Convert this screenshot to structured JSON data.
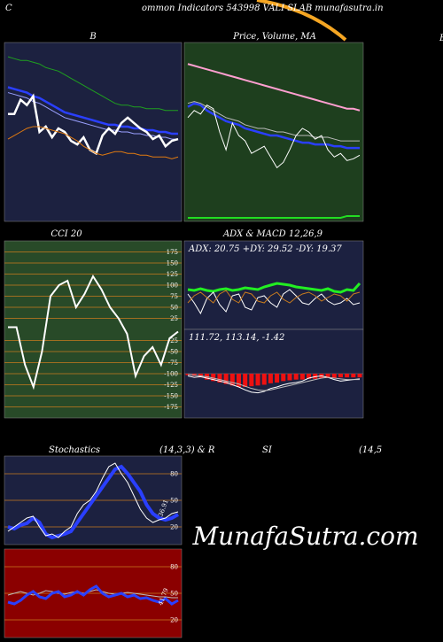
{
  "page": {
    "corner": "C",
    "title": "ommon  Indicators 543998 VALI     SLAB munafasutra.in",
    "right_label": "B",
    "watermark": "MunafaSutra.com",
    "stoch_header": [
      "Stochastics",
      "(14,3,3) & R",
      "SI",
      "(14,5"
    ]
  },
  "chart_data": [
    {
      "type": "line",
      "title": "B",
      "background": "#1c2140",
      "ylim": [
        0,
        100
      ],
      "series": [
        {
          "name": "upper",
          "color": "#1fa01f",
          "width": 1,
          "values": [
            92,
            91,
            90,
            90,
            89,
            88,
            86,
            85,
            84,
            82,
            80,
            78,
            76,
            74,
            72,
            70,
            68,
            66,
            65,
            65,
            64,
            64,
            63,
            63,
            63,
            62,
            62,
            62
          ]
        },
        {
          "name": "mid",
          "color": "#2a3fff",
          "width": 2.5,
          "values": [
            75,
            74,
            73,
            72,
            70,
            69,
            67,
            65,
            63,
            61,
            60,
            59,
            58,
            57,
            56,
            55,
            54,
            54,
            53,
            53,
            52,
            52,
            51,
            51,
            50,
            50,
            49,
            49
          ]
        },
        {
          "name": "mid2",
          "color": "#9aa0ff",
          "width": 1,
          "values": [
            72,
            71,
            70,
            69,
            67,
            66,
            64,
            62,
            60,
            58,
            57,
            56,
            55,
            54,
            53,
            52,
            51,
            51,
            50,
            50,
            49,
            49,
            48,
            48,
            47,
            47,
            46,
            46
          ]
        },
        {
          "name": "price",
          "color": "#ffffff",
          "width": 2.5,
          "values": [
            60,
            60,
            68,
            65,
            70,
            50,
            53,
            47,
            52,
            50,
            45,
            43,
            47,
            40,
            38,
            48,
            52,
            49,
            55,
            58,
            55,
            52,
            50,
            46,
            48,
            42,
            45,
            46
          ]
        },
        {
          "name": "lower",
          "color": "#e07a10",
          "width": 1,
          "values": [
            46,
            48,
            50,
            52,
            53,
            53,
            52,
            51,
            50,
            49,
            47,
            45,
            42,
            40,
            38,
            37,
            38,
            39,
            39,
            38,
            38,
            37,
            37,
            36,
            36,
            36,
            35,
            36
          ]
        }
      ]
    },
    {
      "type": "line",
      "title": "Price, Volume, MA",
      "background": "#1e3f1e",
      "ylim": [
        0,
        100
      ],
      "series": [
        {
          "name": "ma-long",
          "color": "#ff9fd0",
          "width": 2,
          "values": [
            88,
            87,
            86,
            85,
            84,
            83,
            82,
            81,
            80,
            79,
            78,
            77,
            76,
            75,
            74,
            73,
            72,
            71,
            70,
            69,
            68,
            67,
            66,
            65,
            64,
            63,
            63,
            62
          ]
        },
        {
          "name": "ma-gray",
          "color": "#bbbbbb",
          "width": 1,
          "values": [
            66,
            67,
            66,
            64,
            62,
            60,
            58,
            57,
            56,
            54,
            53,
            52,
            52,
            51,
            50,
            50,
            49,
            48,
            48,
            48,
            47,
            47,
            47,
            46,
            45,
            45,
            45,
            45
          ]
        },
        {
          "name": "ma-blue",
          "color": "#2a3fff",
          "width": 2.5,
          "values": [
            64,
            66,
            65,
            62,
            60,
            58,
            56,
            55,
            54,
            52,
            51,
            50,
            49,
            48,
            48,
            47,
            46,
            45,
            44,
            44,
            43,
            43,
            43,
            42,
            42,
            41,
            41,
            41
          ]
        },
        {
          "name": "price",
          "color": "#ffffff",
          "width": 1,
          "values": [
            58,
            62,
            60,
            65,
            63,
            50,
            40,
            55,
            48,
            45,
            38,
            40,
            42,
            36,
            30,
            33,
            40,
            48,
            52,
            50,
            46,
            48,
            40,
            36,
            38,
            34,
            35,
            37
          ]
        },
        {
          "name": "volume",
          "color": "#22dd22",
          "width": 2,
          "values": [
            2,
            2,
            2,
            2,
            2,
            2,
            2,
            2,
            2,
            2,
            2,
            2,
            2,
            2,
            2,
            2,
            2,
            2,
            2,
            2,
            2,
            2,
            2,
            2,
            2,
            3,
            3,
            3
          ]
        }
      ]
    },
    {
      "type": "line",
      "title": "CCI 20",
      "background": "#284a28",
      "grid": true,
      "gridcolor": "#c87b1e",
      "ylim": [
        -200,
        200
      ],
      "yticks": [
        175,
        150,
        125,
        100,
        75,
        50,
        25,
        -25,
        -50,
        -75,
        -100,
        -125,
        -150,
        -175
      ],
      "current": -5,
      "series": [
        {
          "name": "cci",
          "color": "#ffffff",
          "width": 2,
          "values": [
            5,
            5,
            -80,
            -130,
            -50,
            75,
            100,
            110,
            50,
            80,
            120,
            90,
            50,
            25,
            -10,
            -105,
            -60,
            -40,
            -80,
            -20,
            -5
          ]
        }
      ]
    },
    {
      "type": "line",
      "label": "ADX: 20.75  +DY: 29.52  -DY: 19.37",
      "title": "ADX  & MACD 12,26,9",
      "background": "#1c2140",
      "ylim": [
        0,
        100
      ],
      "series": [
        {
          "name": "adx",
          "color": "#22ee22",
          "width": 3,
          "values": [
            45,
            44,
            46,
            44,
            43,
            45,
            46,
            44,
            45,
            47,
            46,
            45,
            48,
            50,
            52,
            51,
            50,
            48,
            47,
            46,
            45,
            44,
            46,
            43,
            42,
            45,
            44,
            52
          ]
        },
        {
          "name": "plus-di",
          "color": "#ffffff",
          "width": 1,
          "values": [
            40,
            30,
            18,
            35,
            42,
            28,
            20,
            38,
            40,
            25,
            22,
            36,
            38,
            30,
            25,
            40,
            45,
            38,
            30,
            28,
            35,
            40,
            32,
            28,
            30,
            35,
            28,
            30
          ]
        },
        {
          "name": "minus-di",
          "color": "#c87b1e",
          "width": 1,
          "values": [
            30,
            38,
            42,
            36,
            30,
            40,
            44,
            34,
            30,
            42,
            40,
            32,
            30,
            38,
            42,
            34,
            30,
            36,
            40,
            42,
            38,
            32,
            36,
            40,
            38,
            32,
            40,
            42
          ]
        }
      ]
    },
    {
      "type": "line",
      "label": "111.72, 113.14, -1.42",
      "background": "#1c2140",
      "ylim": [
        -60,
        60
      ],
      "zero": true,
      "series": [
        {
          "name": "hist",
          "color": "#ee1111",
          "bars": true,
          "values": [
            -2,
            -3,
            -5,
            -8,
            -10,
            -12,
            -14,
            -16,
            -18,
            -18,
            -17,
            -16,
            -15,
            -13,
            -12,
            -10,
            -9,
            -8,
            -8,
            -7,
            -7,
            -6,
            -6,
            -6,
            -5,
            -5,
            -5,
            -5
          ]
        },
        {
          "name": "macd",
          "color": "#ffffff",
          "width": 1,
          "values": [
            -3,
            -5,
            -4,
            -6,
            -8,
            -10,
            -12,
            -15,
            -18,
            -22,
            -25,
            -26,
            -24,
            -20,
            -18,
            -15,
            -13,
            -12,
            -10,
            -6,
            -4,
            -3,
            -5,
            -8,
            -10,
            -9,
            -8,
            -7
          ]
        },
        {
          "name": "signal",
          "color": "#bbbbbb",
          "width": 1,
          "values": [
            -1,
            -2,
            -3,
            -4,
            -6,
            -8,
            -10,
            -12,
            -14,
            -17,
            -20,
            -22,
            -23,
            -22,
            -20,
            -18,
            -16,
            -14,
            -12,
            -10,
            -8,
            -6,
            -5,
            -6,
            -7,
            -8,
            -8,
            -8
          ]
        }
      ]
    },
    {
      "type": "line",
      "background": "#1c2140",
      "grid": true,
      "gridcolor": "#c87b1e",
      "ylim": [
        0,
        100
      ],
      "yticks": [
        80,
        50,
        20
      ],
      "current_label": "36.91",
      "series": [
        {
          "name": "stoch-d",
          "color": "#2a3fff",
          "width": 4,
          "values": [
            20,
            18,
            22,
            24,
            30,
            25,
            12,
            8,
            10,
            12,
            15,
            25,
            35,
            45,
            55,
            65,
            75,
            85,
            88,
            80,
            70,
            60,
            45,
            35,
            30,
            28,
            30,
            34
          ]
        },
        {
          "name": "stoch-k",
          "color": "#ffffff",
          "width": 1,
          "values": [
            15,
            20,
            25,
            30,
            32,
            20,
            10,
            12,
            8,
            15,
            20,
            35,
            45,
            50,
            60,
            75,
            88,
            92,
            80,
            70,
            55,
            40,
            30,
            25,
            28,
            30,
            35,
            37
          ]
        }
      ]
    },
    {
      "type": "line",
      "background": "#8b0000",
      "grid": true,
      "gridcolor": "#c87b1e",
      "ylim": [
        0,
        100
      ],
      "yticks": [
        80,
        50,
        20
      ],
      "current_label": "41.79",
      "series": [
        {
          "name": "rsi-ma",
          "color": "#bbbbbb",
          "width": 1,
          "values": [
            48,
            50,
            52,
            50,
            48,
            50,
            53,
            52,
            50,
            49,
            51,
            52,
            50,
            52,
            54,
            52,
            50,
            49,
            50,
            51,
            50,
            49,
            48,
            47,
            46,
            46,
            45,
            45
          ]
        },
        {
          "name": "rsi",
          "color": "#2a3fff",
          "width": 3,
          "values": [
            40,
            38,
            42,
            48,
            52,
            46,
            44,
            50,
            52,
            46,
            48,
            52,
            48,
            54,
            58,
            50,
            46,
            48,
            50,
            46,
            48,
            44,
            45,
            42,
            40,
            44,
            38,
            42
          ]
        }
      ]
    }
  ]
}
